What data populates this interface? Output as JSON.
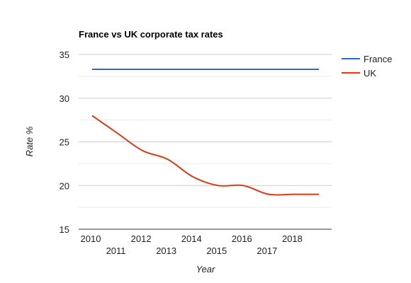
{
  "chart_data": {
    "type": "line",
    "title": "France vs UK corporate tax rates",
    "xlabel": "Year",
    "ylabel": "Rate %",
    "x": [
      2010,
      2011,
      2012,
      2013,
      2014,
      2015,
      2016,
      2017,
      2018,
      2019
    ],
    "x_tick_labels": [
      "2010",
      "2011",
      "2012",
      "2013",
      "2014",
      "2015",
      "2016",
      "2017",
      "2018"
    ],
    "xlim": [
      2009.95,
      2019
    ],
    "ylim": [
      15,
      35
    ],
    "y_ticks": [
      "15",
      "20",
      "25",
      "30",
      "35"
    ],
    "grid": true,
    "legend_position": "right",
    "series": [
      {
        "name": "France",
        "color": "#3366cc",
        "values": [
          33.3,
          33.3,
          33.3,
          33.3,
          33.3,
          33.3,
          33.3,
          33.3,
          33.3,
          33.3
        ]
      },
      {
        "name": "UK",
        "color": "#dc3912",
        "values": [
          28,
          26,
          24,
          23,
          21,
          20,
          20,
          19,
          19,
          19
        ]
      }
    ]
  }
}
